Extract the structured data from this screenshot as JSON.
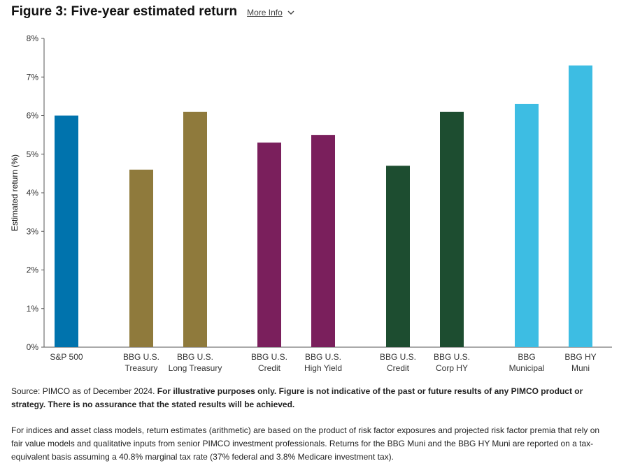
{
  "header": {
    "title": "Figure 3: Five-year estimated return",
    "more_info": "More Info"
  },
  "chart_data": {
    "type": "bar",
    "title": "Figure 3: Five-year estimated return",
    "xlabel": "",
    "ylabel": "Estimated return (%)",
    "ylim": [
      0,
      8
    ],
    "yticks": [
      "0%",
      "1%",
      "2%",
      "3%",
      "4%",
      "5%",
      "6%",
      "7%",
      "8%"
    ],
    "grid": false,
    "categories": [
      [
        "S&P 500"
      ],
      [
        "BBG U.S.",
        "Treasury"
      ],
      [
        "BBG U.S.",
        "Long Treasury"
      ],
      [
        "BBG U.S.",
        "Credit"
      ],
      [
        "BBG U.S.",
        "High Yield"
      ],
      [
        "BBG U.S.",
        "Credit"
      ],
      [
        "BBG U.S.",
        "Corp HY"
      ],
      [
        "BBG",
        "Municipal"
      ],
      [
        "BBG HY",
        "Muni"
      ]
    ],
    "values": [
      6.0,
      4.6,
      6.1,
      5.3,
      5.5,
      4.7,
      6.1,
      6.3,
      7.3
    ],
    "colors": [
      "#0073ad",
      "#8f7a3c",
      "#8f7a3c",
      "#7a1f5c",
      "#7a1f5c",
      "#1d4d30",
      "#1d4d30",
      "#3dbde3",
      "#3dbde3"
    ],
    "axis_color": "#555555"
  },
  "footer": {
    "source_prefix": "Source: PIMCO as of December 2024. ",
    "source_bold": "For illustrative purposes only. Figure is not indicative of the past or future results of any PIMCO product or strategy. There is no assurance that the stated results will be achieved.",
    "note": "For indices and asset class models, return estimates (arithmetic) are based on the product of risk factor exposures and projected risk factor premia that rely on fair value models and qualitative inputs from senior PIMCO investment professionals. Returns for the BBG Muni and the BBG HY Muni are reported on a tax-equivalent basis assuming a 40.8% marginal tax rate (37% federal and 3.8% Medicare investment tax)."
  }
}
